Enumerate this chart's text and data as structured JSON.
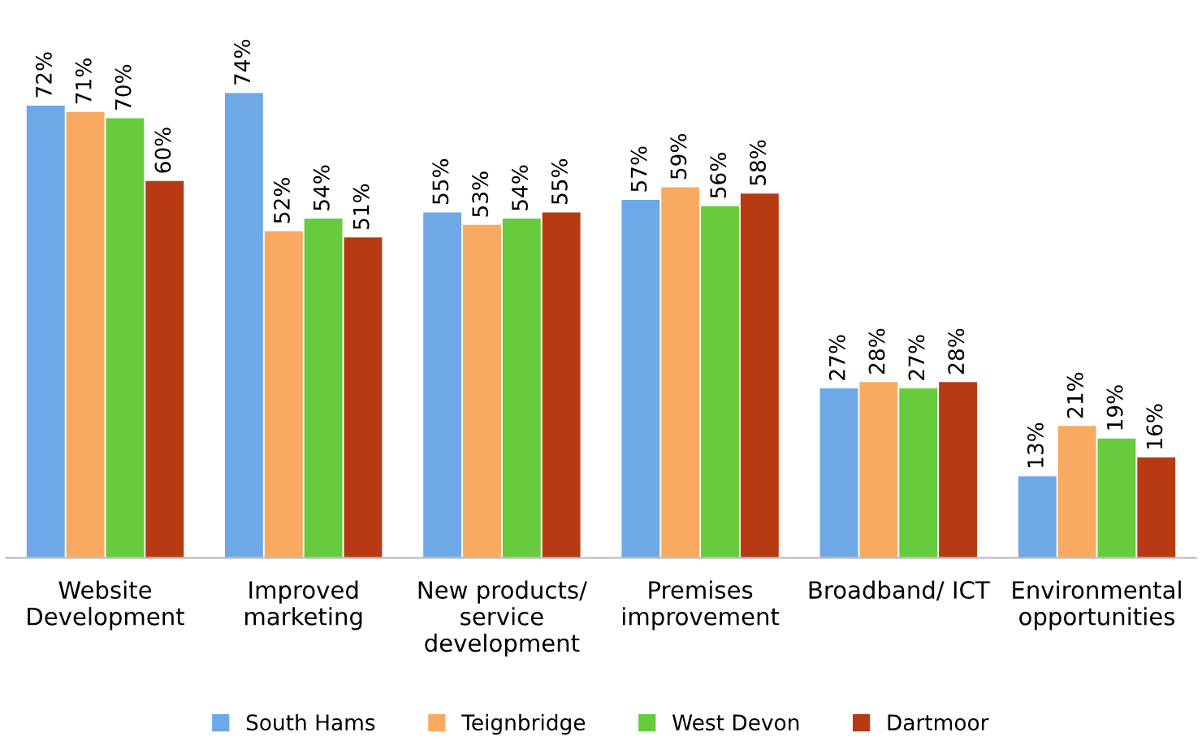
{
  "chart_data": {
    "type": "bar",
    "categories": [
      "Website\nDevelopment",
      "Improved\nmarketing",
      "New products/\nservice\ndevelopment",
      "Premises\nimprovement",
      "Broadband/ ICT",
      "Environmental\nopportunities"
    ],
    "series": [
      {
        "name": "South Hams",
        "color": "#6fa8e6",
        "values": [
          72,
          74,
          55,
          57,
          27,
          13
        ],
        "value_labels": [
          "72%",
          "74%",
          "55%",
          "57%",
          "27%",
          "13%"
        ]
      },
      {
        "name": "Teignbridge",
        "color": "#f9aa60",
        "values": [
          71,
          52,
          53,
          59,
          28,
          21
        ],
        "value_labels": [
          "71%",
          "52%",
          "53%",
          "59%",
          "28%",
          "21%"
        ]
      },
      {
        "name": "West Devon",
        "color": "#66cc3d",
        "values": [
          70,
          54,
          54,
          56,
          27,
          19
        ],
        "value_labels": [
          "70%",
          "54%",
          "54%",
          "56%",
          "27%",
          "19%"
        ]
      },
      {
        "name": "Dartmoor",
        "color": "#b83a12",
        "values": [
          60,
          51,
          55,
          58,
          28,
          16
        ],
        "value_labels": [
          "60%",
          "51%",
          "55%",
          "58%",
          "28%",
          "16%"
        ]
      }
    ],
    "legend": "bottom",
    "grid": false
  }
}
